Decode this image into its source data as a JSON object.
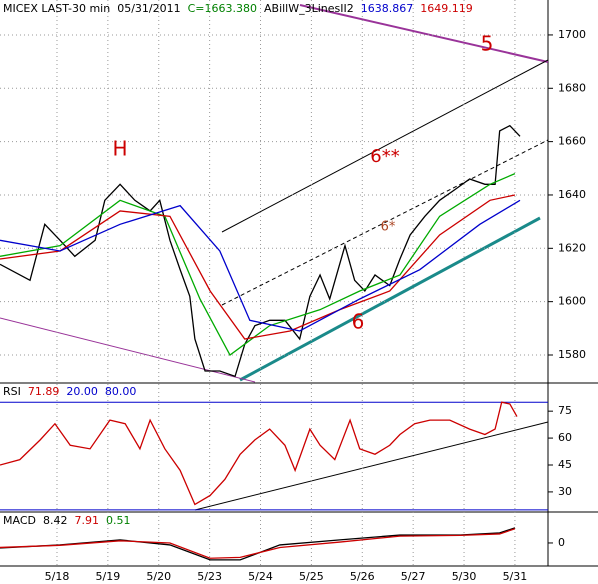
{
  "x_axis": {
    "xlim": [
      -0.12,
      10.65
    ],
    "xticks": [
      {
        "value": 1,
        "label": "5/18"
      },
      {
        "value": 2,
        "label": "5/19"
      },
      {
        "value": 3,
        "label": "5/20"
      },
      {
        "value": 4,
        "label": "5/23"
      },
      {
        "value": 5,
        "label": "5/24"
      },
      {
        "value": 6,
        "label": "5/25"
      },
      {
        "value": 7,
        "label": "5/26"
      },
      {
        "value": 8,
        "label": "5/27"
      },
      {
        "value": 9,
        "label": "5/30"
      },
      {
        "value": 10,
        "label": "5/31"
      }
    ]
  },
  "chart_data": [
    {
      "type": "line",
      "header": [
        {
          "text": "MICEX LAST-30 min",
          "color": "#000000"
        },
        {
          "text": "05/31/2011",
          "color": "#000000"
        },
        {
          "text": "C=1663.380",
          "color": "#008000"
        },
        {
          "text": "ABillW_3LinesII2",
          "color": "#000000"
        },
        {
          "text": "1638.867",
          "color": "#0000cc"
        },
        {
          "text": "1649.119",
          "color": "#cc0000"
        }
      ],
      "annotations": [
        "H",
        "5",
        "6**",
        "6*",
        "6"
      ],
      "ylim": [
        1569.5,
        1713.1
      ],
      "yticks": [
        1580,
        1600,
        1620,
        1640,
        1660,
        1680,
        1700
      ],
      "grid": true,
      "series": [
        {
          "color": "#000000",
          "x": [
            -0.12,
            0.47,
            0.76,
            1.06,
            1.35,
            1.75,
            1.94,
            2.24,
            2.53,
            2.83,
            3.02,
            3.22,
            3.42,
            3.61,
            3.71,
            3.91,
            4.2,
            4.5,
            4.69,
            4.89,
            5.18,
            5.48,
            5.77,
            5.97,
            6.17,
            6.36,
            6.66,
            6.85,
            7.05,
            7.25,
            7.54,
            7.74,
            7.94,
            8.23,
            8.52,
            8.82,
            9.11,
            9.41,
            9.61,
            9.7,
            9.9,
            10.1
          ],
          "values": [
            1614,
            1608,
            1629,
            1623,
            1617,
            1623,
            1638,
            1644,
            1638,
            1634,
            1638,
            1623,
            1612,
            1602,
            1586,
            1574,
            1574,
            1572,
            1584,
            1591,
            1593,
            1593,
            1586,
            1602,
            1610,
            1601,
            1621,
            1608,
            1604,
            1610,
            1606,
            1616,
            1625,
            1632,
            1638,
            1642,
            1646,
            1644,
            1644,
            1664,
            1666,
            1662
          ]
        },
        {
          "color": "#00aa00",
          "x": [
            -0.12,
            1.06,
            2.24,
            3.12,
            3.81,
            4.4,
            5.18,
            6.17,
            6.95,
            7.74,
            8.52,
            9.51,
            10.0
          ],
          "values": [
            1617,
            1621,
            1638,
            1632,
            1601,
            1580,
            1591,
            1597,
            1604,
            1610,
            1632,
            1644,
            1648
          ]
        },
        {
          "color": "#cc0000",
          "x": [
            -0.12,
            1.06,
            2.24,
            3.22,
            4.01,
            4.69,
            5.58,
            6.56,
            7.54,
            8.52,
            9.51,
            10.0
          ],
          "values": [
            1616,
            1619,
            1634,
            1632,
            1604,
            1586,
            1589,
            1597,
            1604,
            1625,
            1638,
            1640
          ]
        },
        {
          "color": "#0000cc",
          "x": [
            -0.12,
            1.06,
            2.24,
            3.42,
            4.2,
            4.79,
            5.77,
            6.95,
            8.13,
            9.31,
            10.1
          ],
          "values": [
            1623,
            1619,
            1629,
            1636,
            1619,
            1593,
            1589,
            1601,
            1612,
            1629,
            1638
          ]
        }
      ]
    },
    {
      "type": "line",
      "header": [
        {
          "text": "RSI",
          "color": "#000000"
        },
        {
          "text": "71.89",
          "color": "#cc0000"
        },
        {
          "text": "20.00",
          "color": "#0000cc"
        },
        {
          "text": "80.00",
          "color": "#0000cc"
        }
      ],
      "levels": [
        20,
        80
      ],
      "ylim": [
        18.8,
        90.7
      ],
      "yticks": [
        30,
        45,
        60,
        75
      ],
      "grid": false,
      "series": [
        {
          "color": "#cc0000",
          "x": [
            -0.12,
            0.27,
            0.67,
            0.96,
            1.26,
            1.65,
            2.04,
            2.34,
            2.63,
            2.83,
            3.12,
            3.42,
            3.71,
            4.01,
            4.3,
            4.6,
            4.89,
            5.18,
            5.48,
            5.68,
            5.97,
            6.17,
            6.46,
            6.76,
            6.95,
            7.25,
            7.54,
            7.74,
            8.03,
            8.33,
            8.72,
            9.11,
            9.41,
            9.61,
            9.74,
            9.9,
            10.04
          ],
          "values": [
            45,
            48,
            59,
            68,
            56,
            54,
            70,
            68,
            54,
            70,
            54,
            42,
            23,
            28,
            37,
            51,
            59,
            65,
            56,
            42,
            65,
            56,
            48,
            70,
            54,
            51,
            56,
            62,
            68,
            70,
            70,
            65,
            62,
            65,
            80,
            79,
            72
          ]
        }
      ]
    },
    {
      "type": "line",
      "header": [
        {
          "text": "MACD",
          "color": "#000000"
        },
        {
          "text": "8.42",
          "color": "#000000"
        },
        {
          "text": "7.91",
          "color": "#cc0000"
        },
        {
          "text": "0.51",
          "color": "#008000"
        }
      ],
      "ylim": [
        -12.8,
        17.2
      ],
      "yticks": [
        0
      ],
      "grid": false,
      "series": [
        {
          "color": "#000000",
          "x": [
            -0.12,
            1.06,
            2.24,
            3.22,
            4.01,
            4.6,
            5.38,
            6.56,
            7.74,
            8.92,
            9.7,
            10.0
          ],
          "values": [
            -2.8,
            -1.1,
            1.7,
            -1.1,
            -9.4,
            -9.4,
            -1.1,
            1.7,
            4.4,
            4.4,
            5.6,
            8.4
          ]
        },
        {
          "color": "#cc0000",
          "x": [
            -0.12,
            1.06,
            2.24,
            3.22,
            4.01,
            4.6,
            5.38,
            6.56,
            7.74,
            8.92,
            9.7,
            10.0
          ],
          "values": [
            -2.5,
            -1.3,
            1.2,
            0,
            -8.5,
            -8.0,
            -2.5,
            0.5,
            3.8,
            4.2,
            5.0,
            7.9
          ]
        }
      ]
    }
  ]
}
